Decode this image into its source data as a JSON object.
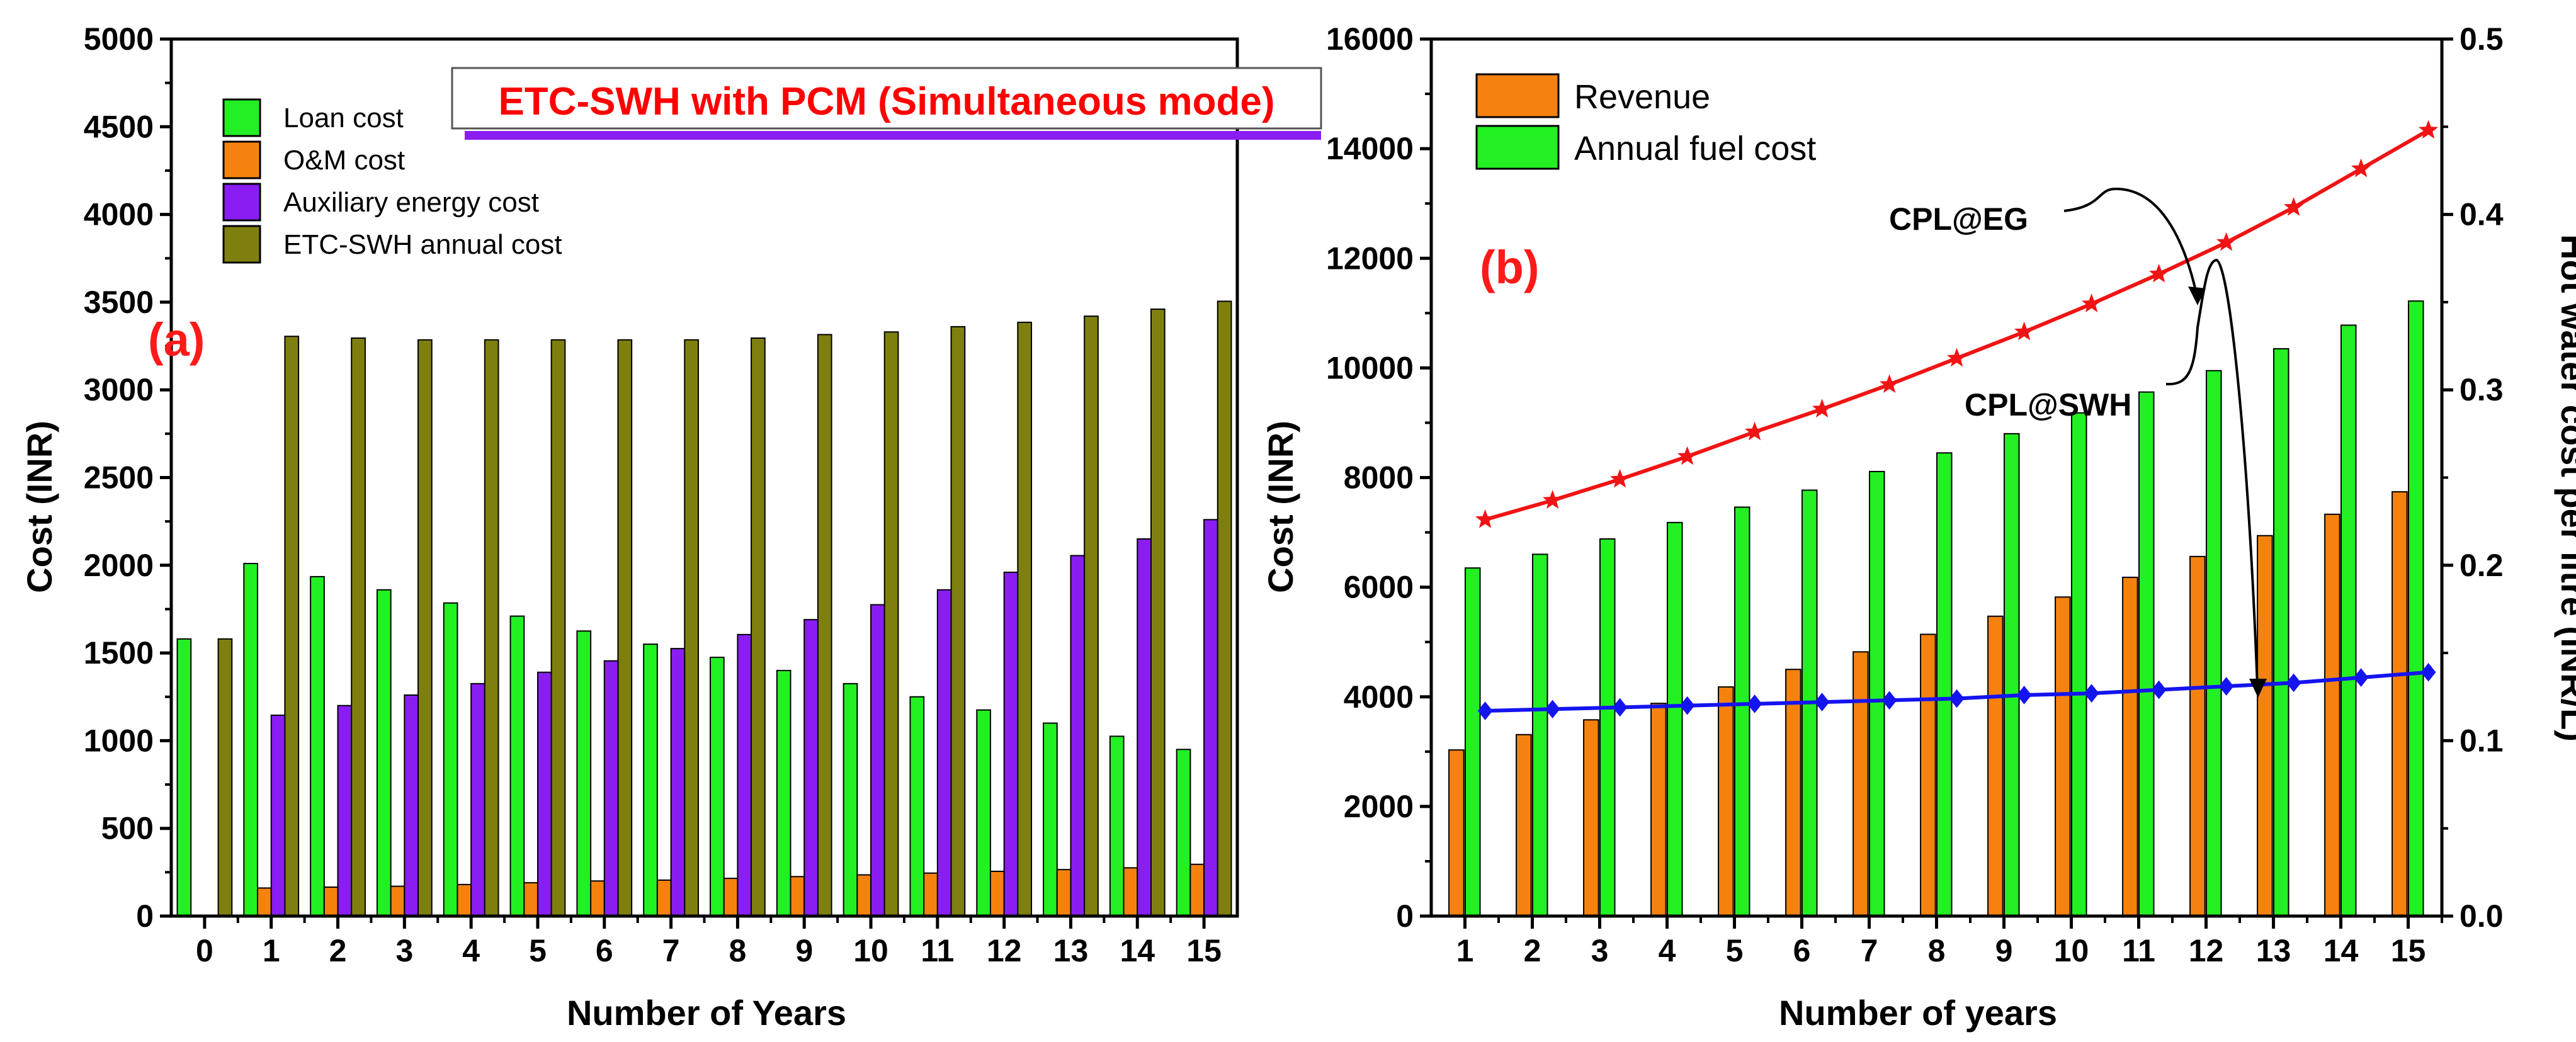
{
  "chart_data": [
    {
      "panel": "a",
      "type": "bar",
      "panel_label": "(a)",
      "title": "ETC-SWH with PCM (Simultaneous mode)",
      "xlabel": "Number of Years",
      "ylabel": "Cost (INR)",
      "ylim": [
        0,
        5000
      ],
      "yticks": [
        0,
        500,
        1000,
        1500,
        2000,
        2500,
        3000,
        3500,
        4000,
        4500,
        5000
      ],
      "categories": [
        "0",
        "1",
        "2",
        "3",
        "4",
        "5",
        "6",
        "7",
        "8",
        "9",
        "10",
        "11",
        "12",
        "13",
        "14",
        "15"
      ],
      "legend_position": "top-left",
      "series": [
        {
          "name": "Loan cost",
          "color": "#22f022",
          "values": [
            1580,
            2010,
            1935,
            1860,
            1785,
            1710,
            1625,
            1550,
            1475,
            1400,
            1325,
            1250,
            1175,
            1100,
            1025,
            950
          ]
        },
        {
          "name": "O&M cost",
          "color": "#f5820f",
          "values": [
            0,
            160,
            165,
            170,
            180,
            190,
            200,
            205,
            215,
            225,
            235,
            245,
            255,
            265,
            275,
            295
          ]
        },
        {
          "name": "Auxiliary energy cost",
          "color": "#8a1ef2",
          "values": [
            0,
            1145,
            1200,
            1260,
            1325,
            1390,
            1455,
            1525,
            1605,
            1690,
            1775,
            1860,
            1960,
            2055,
            2150,
            2260
          ]
        },
        {
          "name": "ETC-SWH annual cost",
          "color": "#7f7f10",
          "values": [
            1580,
            3305,
            3295,
            3285,
            3285,
            3285,
            3285,
            3285,
            3295,
            3315,
            3330,
            3360,
            3385,
            3420,
            3460,
            3505
          ]
        }
      ]
    },
    {
      "panel": "b",
      "type": "bar",
      "panel_label": "(b)",
      "xlabel": "Number of years",
      "ylabel": "Cost (INR)",
      "y2label": "Hot water cost per litre (INR/L)",
      "ylim": [
        0,
        16000
      ],
      "yticks": [
        0,
        2000,
        4000,
        6000,
        8000,
        10000,
        12000,
        14000,
        16000
      ],
      "y2lim": [
        0.0,
        0.5
      ],
      "y2ticks": [
        "0.0",
        "0.1",
        "0.2",
        "0.3",
        "0.4",
        "0.5"
      ],
      "categories": [
        "1",
        "2",
        "3",
        "4",
        "5",
        "6",
        "7",
        "8",
        "9",
        "10",
        "11",
        "12",
        "13",
        "14",
        "15"
      ],
      "legend_position": "top-left",
      "series": [
        {
          "name": "Revenue",
          "color": "#f5820f",
          "values": [
            3030,
            3310,
            3580,
            3880,
            4180,
            4500,
            4820,
            5140,
            5470,
            5820,
            6180,
            6560,
            6940,
            7330,
            7740
          ]
        },
        {
          "name": "Annual fuel cost",
          "color": "#22f022",
          "values": [
            6350,
            6600,
            6880,
            7180,
            7460,
            7770,
            8110,
            8450,
            8800,
            9180,
            9560,
            9950,
            10350,
            10780,
            11220
          ]
        }
      ],
      "line_series": [
        {
          "annotation": "CPL@EG",
          "axis": "y2",
          "color": "#f01414",
          "marker": "star",
          "x": [
            1.3,
            2.3,
            3.3,
            4.3,
            5.3,
            6.3,
            7.3,
            8.3,
            9.3,
            10.3,
            11.3,
            12.3,
            13.3,
            14.3,
            15.3
          ],
          "values": [
            0.226,
            0.237,
            0.249,
            0.262,
            0.276,
            0.289,
            0.303,
            0.318,
            0.333,
            0.349,
            0.366,
            0.384,
            0.404,
            0.426,
            0.448
          ]
        },
        {
          "annotation": "CPL@SWH",
          "axis": "y2",
          "color": "#1414f0",
          "marker": "diamond",
          "x": [
            1.3,
            2.3,
            3.3,
            4.3,
            5.3,
            6.3,
            7.3,
            8.3,
            9.3,
            10.3,
            11.3,
            12.3,
            13.3,
            14.3,
            15.3
          ],
          "values": [
            0.117,
            0.118,
            0.119,
            0.12,
            0.121,
            0.122,
            0.123,
            0.124,
            0.126,
            0.127,
            0.129,
            0.131,
            0.133,
            0.136,
            0.139
          ]
        }
      ]
    }
  ]
}
